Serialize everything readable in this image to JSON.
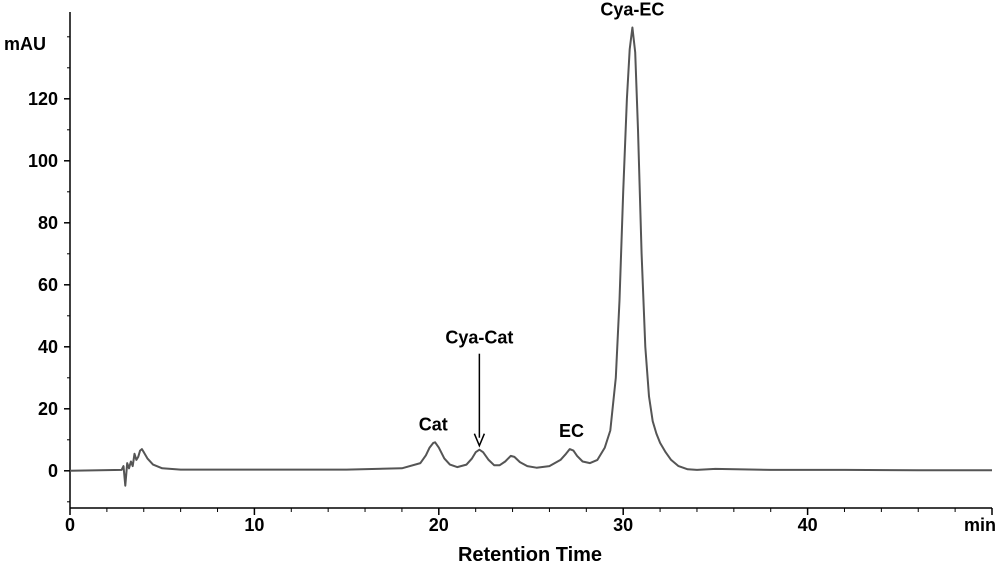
{
  "chart_data": {
    "type": "line",
    "title": "",
    "xlabel": "Retention Time",
    "xunit": "min",
    "ylabel": "",
    "yunit": "mAU",
    "xlim": [
      0,
      50
    ],
    "ylim": [
      -12,
      148
    ],
    "x_ticks": [
      0,
      10,
      20,
      30,
      40
    ],
    "y_ticks": [
      0,
      20,
      40,
      60,
      80,
      100,
      120
    ],
    "grid": false,
    "legend": "none",
    "line_color": "#555555",
    "series": [
      {
        "x": [
          0,
          2.8,
          2.9,
          3.0,
          3.1,
          3.2,
          3.3,
          3.4,
          3.5,
          3.6,
          3.7,
          3.8,
          3.9,
          4.0,
          4.2,
          4.5,
          5.0,
          6,
          10,
          15,
          18,
          19.0,
          19.3,
          19.5,
          19.7,
          19.8,
          20.0,
          20.3,
          20.6,
          21.0,
          21.5,
          21.8,
          22.0,
          22.2,
          22.4,
          22.7,
          23.0,
          23.3,
          23.6,
          23.9,
          24.1,
          24.4,
          24.8,
          25.3,
          26.0,
          26.6,
          26.9,
          27.1,
          27.3,
          27.5,
          27.8,
          28.2,
          28.6,
          29.0,
          29.3,
          29.6,
          29.8,
          30.0,
          30.2,
          30.35,
          30.5,
          30.65,
          30.8,
          31.0,
          31.2,
          31.4,
          31.6,
          31.8,
          32.0,
          32.3,
          32.6,
          33.0,
          33.5,
          34,
          35,
          38,
          42,
          46,
          50
        ],
        "y": [
          0,
          0.3,
          1.5,
          -4.8,
          2.5,
          0.8,
          3.0,
          1.5,
          5.5,
          3.5,
          4.5,
          6.5,
          7.0,
          6.0,
          4.0,
          2.0,
          0.8,
          0.4,
          0.4,
          0.4,
          0.8,
          2.5,
          5.0,
          7.5,
          9.0,
          9.2,
          7.5,
          4.0,
          2.0,
          1.2,
          2.0,
          4.0,
          6.0,
          6.8,
          6.0,
          3.5,
          1.8,
          1.8,
          3.0,
          4.8,
          4.5,
          2.8,
          1.5,
          1.0,
          1.5,
          3.5,
          5.5,
          7.0,
          6.5,
          4.8,
          3.0,
          2.5,
          3.5,
          7.5,
          13.0,
          30.0,
          55.0,
          90.0,
          120.0,
          136.0,
          143.0,
          135.0,
          110.0,
          70.0,
          40.0,
          24.0,
          16.0,
          12.0,
          9.0,
          6.0,
          3.5,
          1.5,
          0.5,
          0.3,
          0.6,
          0.3,
          0.3,
          0.2,
          0.2
        ]
      }
    ],
    "annotations": [
      {
        "text": "Cat",
        "x": 19.7,
        "y": 9.2
      },
      {
        "text": "Cya-Cat",
        "x": 22.2,
        "y": 6.8,
        "arrow": true
      },
      {
        "text": "EC",
        "x": 27.2,
        "y": 7.0
      },
      {
        "text": "Cya-EC",
        "x": 30.5,
        "y": 143.0
      }
    ]
  }
}
